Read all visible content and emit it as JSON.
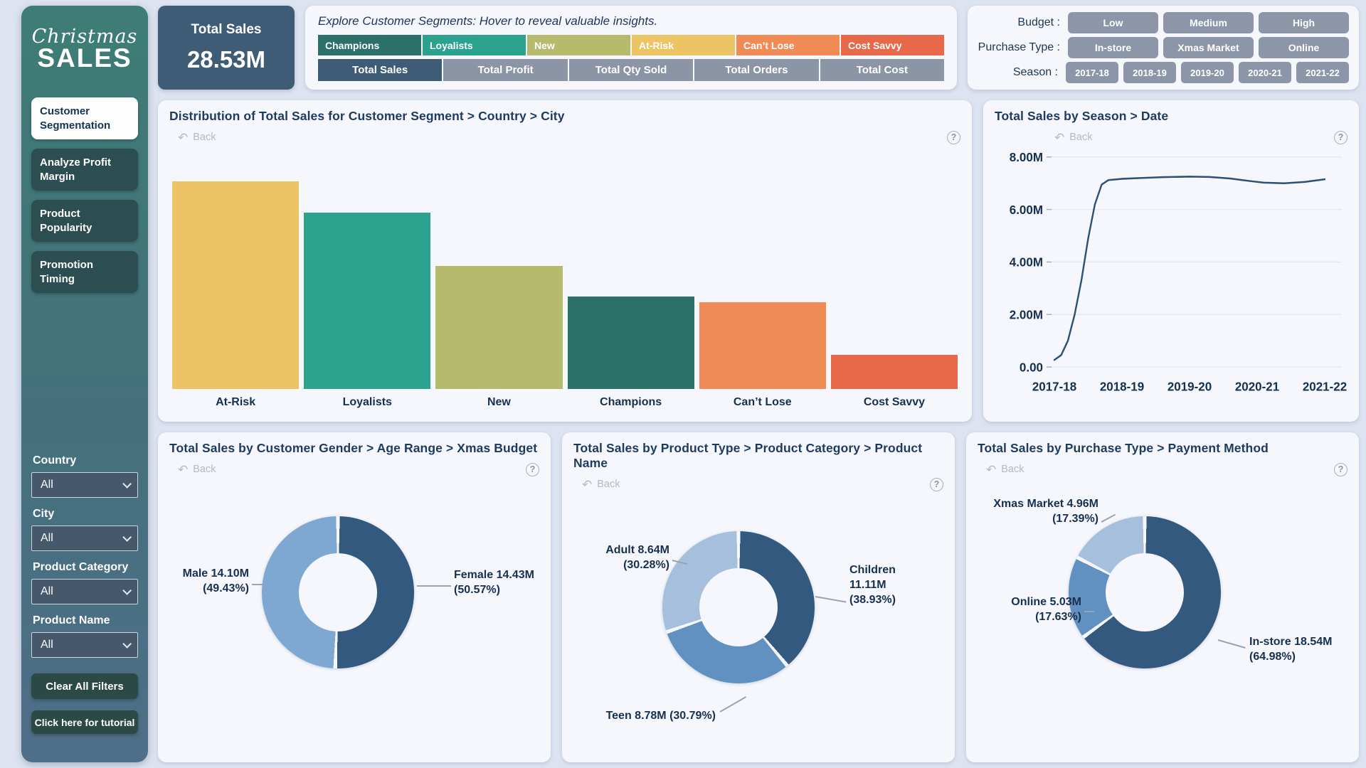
{
  "sidebar": {
    "logo_line1": "Christmas",
    "logo_line2": "SALES",
    "nav": [
      {
        "label": "Customer Segmentation",
        "active": true
      },
      {
        "label": "Analyze Profit Margin",
        "active": false
      },
      {
        "label": "Product Popularity",
        "active": false
      },
      {
        "label": "Promotion Timing",
        "active": false
      }
    ],
    "filters": [
      {
        "label": "Country",
        "value": "All"
      },
      {
        "label": "City",
        "value": "All"
      },
      {
        "label": "Product Category",
        "value": "All"
      },
      {
        "label": "Product Name",
        "value": "All"
      }
    ],
    "clear_button": "Clear All Filters",
    "tutorial_button": "Click here for tutorial"
  },
  "header": {
    "kpi": {
      "label": "Total Sales",
      "value": "28.53M"
    },
    "hint": "Explore Customer Segments: Hover to reveal valuable insights.",
    "segments": [
      {
        "label": "Champions",
        "color": "#2c706a"
      },
      {
        "label": "Loyalists",
        "color": "#2ba28e"
      },
      {
        "label": "New",
        "color": "#b6ba6d"
      },
      {
        "label": "At-Risk",
        "color": "#ecc464"
      },
      {
        "label": "Can’t Lose",
        "color": "#f08b55"
      },
      {
        "label": "Cost Savvy",
        "color": "#e8694a"
      }
    ],
    "metrics": [
      {
        "label": "Total Sales",
        "selected": true
      },
      {
        "label": "Total Profit",
        "selected": false
      },
      {
        "label": "Total Qty Sold",
        "selected": false
      },
      {
        "label": "Total Orders",
        "selected": false
      },
      {
        "label": "Total Cost",
        "selected": false
      }
    ],
    "filter_rows": [
      {
        "label": "Budget :",
        "options": [
          "Low",
          "Medium",
          "High"
        ]
      },
      {
        "label": "Purchase Type :",
        "options": [
          "In-store",
          "Xmas Market",
          "Online"
        ]
      },
      {
        "label": "Season :",
        "options": [
          "2017-18",
          "2018-19",
          "2019-20",
          "2020-21",
          "2021-22"
        ]
      }
    ]
  },
  "panels": {
    "back_label": "Back",
    "back_icon": "↶",
    "help_icon": "?",
    "bar_title": "Distribution of Total Sales for Customer Segment > Country > City",
    "line_title": "Total Sales by Season > Date",
    "donut_gender_title": "Total Sales by Customer Gender > Age Range > Xmas Budget",
    "donut_product_title": "Total Sales by Product Type > Product Category > Product Name",
    "donut_purchase_title": "Total Sales by Purchase Type > Payment Method"
  },
  "chart_data": [
    {
      "id": "segment_bar",
      "type": "bar",
      "title": "Distribution of Total Sales for Customer Segment > Country > City",
      "categories": [
        "At-Risk",
        "Loyalists",
        "New",
        "Champions",
        "Can’t Lose",
        "Cost Savvy"
      ],
      "values": [
        8.22,
        6.99,
        4.88,
        3.65,
        3.43,
        1.36
      ],
      "unit": "M",
      "colors": [
        "#ecc464",
        "#2ba28e",
        "#b6ba6d",
        "#2c706a",
        "#f08b55",
        "#e8694a"
      ],
      "total": "28.53M"
    },
    {
      "id": "season_line",
      "type": "line",
      "title": "Total Sales by Season > Date",
      "x_categories": [
        "2017-18",
        "2018-19",
        "2019-20",
        "2020-21",
        "2021-22"
      ],
      "y_tick_labels": [
        "0.00",
        "2.00M",
        "4.00M",
        "6.00M",
        "8.00M"
      ],
      "y_tick_values": [
        0,
        2,
        4,
        6,
        8
      ],
      "ylim": [
        0,
        8
      ],
      "grid": true,
      "legend": "none",
      "series": [
        {
          "name": "Total Sales",
          "color": "#2e4f76",
          "points": [
            [
              0,
              0.27
            ],
            [
              0.1,
              0.45
            ],
            [
              0.2,
              1.0
            ],
            [
              0.3,
              2.0
            ],
            [
              0.4,
              3.3
            ],
            [
              0.5,
              4.9
            ],
            [
              0.6,
              6.2
            ],
            [
              0.7,
              6.95
            ],
            [
              0.8,
              7.12
            ],
            [
              1.0,
              7.17
            ],
            [
              1.3,
              7.2
            ],
            [
              1.6,
              7.23
            ],
            [
              2.0,
              7.25
            ],
            [
              2.3,
              7.24
            ],
            [
              2.6,
              7.18
            ],
            [
              2.9,
              7.08
            ],
            [
              3.1,
              7.02
            ],
            [
              3.4,
              7.0
            ],
            [
              3.7,
              7.05
            ],
            [
              4.0,
              7.15
            ]
          ]
        }
      ]
    },
    {
      "id": "gender_donut",
      "type": "pie",
      "title": "Total Sales by Customer Gender > Age Range > Xmas Budget",
      "slices": [
        {
          "label": "Female",
          "value": 14.43,
          "pct": 50.57,
          "color": "#33597f",
          "callout_lines": [
            "Female 14.43M",
            "(50.57%)"
          ]
        },
        {
          "label": "Male",
          "value": 14.1,
          "pct": 49.43,
          "color": "#7ea7d2",
          "callout_lines": [
            "Male 14.10M",
            "(49.43%)"
          ]
        }
      ]
    },
    {
      "id": "product_donut",
      "type": "pie",
      "title": "Total Sales by Product Type > Product Category > Product Name",
      "slices": [
        {
          "label": "Children",
          "value": 11.11,
          "pct": 38.93,
          "color": "#33597f",
          "callout_lines": [
            "Children",
            "11.11M",
            "(38.93%)"
          ]
        },
        {
          "label": "Teen",
          "value": 8.78,
          "pct": 30.79,
          "color": "#6191c1",
          "callout_lines": [
            "Teen 8.78M (30.79%)"
          ]
        },
        {
          "label": "Adult",
          "value": 8.64,
          "pct": 30.28,
          "color": "#a6bfdd",
          "callout_lines": [
            "Adult 8.64M",
            "(30.28%)"
          ]
        }
      ]
    },
    {
      "id": "purchase_donut",
      "type": "pie",
      "title": "Total Sales by Purchase Type > Payment Method",
      "slices": [
        {
          "label": "In-store",
          "value": 18.54,
          "pct": 64.98,
          "color": "#33597f",
          "callout_lines": [
            "In-store 18.54M",
            "(64.98%)"
          ]
        },
        {
          "label": "Online",
          "value": 5.03,
          "pct": 17.63,
          "color": "#6191c1",
          "callout_lines": [
            "Online 5.03M",
            "(17.63%)"
          ]
        },
        {
          "label": "Xmas Market",
          "value": 4.96,
          "pct": 17.39,
          "color": "#a6bfdd",
          "callout_lines": [
            "Xmas Market 4.96M",
            "(17.39%)"
          ]
        }
      ]
    }
  ]
}
